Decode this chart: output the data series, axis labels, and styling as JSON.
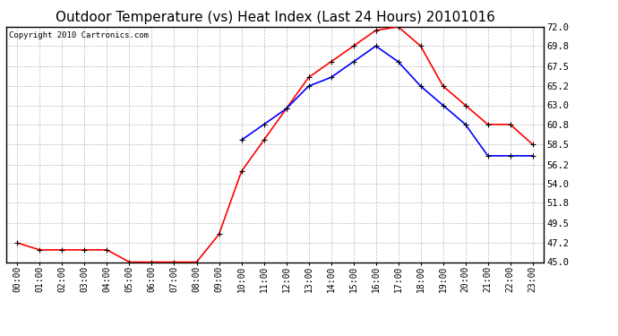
{
  "title": "Outdoor Temperature (vs) Heat Index (Last 24 Hours) 20101016",
  "copyright_text": "Copyright 2010 Cartronics.com",
  "x_labels": [
    "00:00",
    "01:00",
    "02:00",
    "03:00",
    "04:00",
    "05:00",
    "06:00",
    "07:00",
    "08:00",
    "09:00",
    "10:00",
    "11:00",
    "12:00",
    "13:00",
    "14:00",
    "15:00",
    "16:00",
    "17:00",
    "18:00",
    "19:00",
    "20:00",
    "21:00",
    "22:00",
    "23:00"
  ],
  "temp_data": [
    47.2,
    46.4,
    46.4,
    46.4,
    46.4,
    45.0,
    45.0,
    45.0,
    45.0,
    48.2,
    55.4,
    59.0,
    62.6,
    66.2,
    68.0,
    69.8,
    71.6,
    72.0,
    69.8,
    65.2,
    63.0,
    60.8,
    60.8,
    58.5
  ],
  "heat_index_data": [
    null,
    null,
    null,
    null,
    null,
    null,
    null,
    null,
    null,
    null,
    59.0,
    60.8,
    62.6,
    65.2,
    66.2,
    68.0,
    69.8,
    68.0,
    65.2,
    63.0,
    60.8,
    57.2,
    57.2,
    57.2
  ],
  "temp_color": "#FF0000",
  "heat_index_color": "#0000FF",
  "marker_color": "#000000",
  "bg_color": "#FFFFFF",
  "plot_bg_color": "#FFFFFF",
  "grid_color": "#BBBBBB",
  "ylim": [
    45.0,
    72.0
  ],
  "yticks": [
    45.0,
    47.2,
    49.5,
    51.8,
    54.0,
    56.2,
    58.5,
    60.8,
    63.0,
    65.2,
    67.5,
    69.8,
    72.0
  ],
  "title_fontsize": 11,
  "copyright_fontsize": 6.5,
  "tick_fontsize": 7,
  "ytick_fontsize": 7.5
}
